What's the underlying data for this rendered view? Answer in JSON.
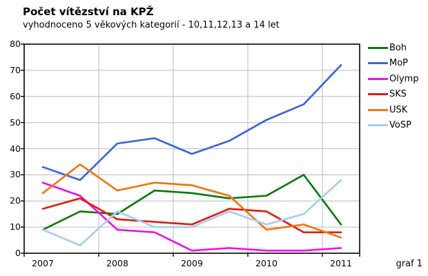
{
  "chart_data": {
    "type": "line",
    "title": "Počet vítězství na KPŽ",
    "subtitle": "vyhodnoceno 5 věkových kategorií - 10,11,12,13 a 14 let",
    "note": "graf 1",
    "x": [
      2007,
      2007.5,
      2008,
      2008.5,
      2009,
      2009.5,
      2010,
      2010.5,
      2011
    ],
    "xtick_labels": [
      "2007",
      "2008",
      "2009",
      "2010",
      "2011"
    ],
    "ytick_labels": [
      "0",
      "10",
      "20",
      "30",
      "40",
      "50",
      "60",
      "70",
      "80"
    ],
    "ylim": [
      0,
      80
    ],
    "grid": true,
    "legend_position": "right",
    "colors": {
      "grid": "#c6c6c6",
      "frame": "#000000",
      "text": "#000000"
    },
    "series": [
      {
        "name": "Boh",
        "color": "#0a7a0a",
        "values": [
          9,
          16,
          15,
          24,
          23,
          21,
          22,
          30,
          11
        ]
      },
      {
        "name": "MoP",
        "color": "#3c64dc",
        "values": [
          33,
          28,
          42,
          44,
          38,
          43,
          51,
          57,
          72
        ]
      },
      {
        "name": "Olymp",
        "color": "#ee11ee",
        "values": [
          27,
          22,
          9,
          8,
          1,
          2,
          1,
          1,
          2
        ]
      },
      {
        "name": "SKS",
        "color": "#dd1e14",
        "values": [
          17,
          21,
          13,
          12,
          11,
          17,
          16,
          8,
          8
        ]
      },
      {
        "name": "USK",
        "color": "#f0760f",
        "values": [
          23,
          34,
          24,
          27,
          26,
          22,
          9,
          11,
          6
        ]
      },
      {
        "name": "VoSP",
        "color": "#a9ccf0",
        "values": [
          9,
          3,
          16,
          10,
          10,
          16,
          11,
          15,
          28
        ]
      }
    ]
  }
}
